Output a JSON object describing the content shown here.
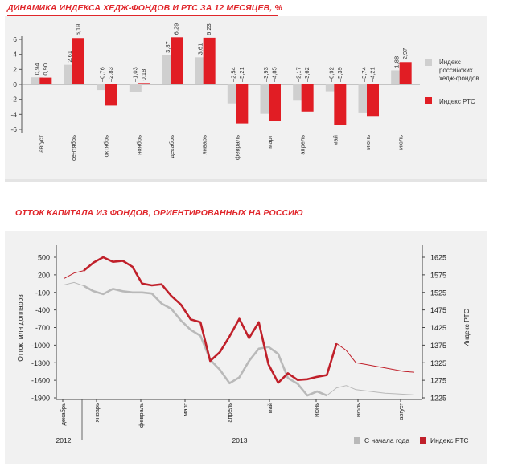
{
  "titles": {
    "chart1": "ДИНАМИКА ИНДЕКСА ХЕДЖ-ФОНДОВ И РТС ЗА 12 МЕСЯЦЕВ, %",
    "chart2": "ОТТОК КАПИТАЛА ИЗ ФОНДОВ, ОРИЕНТИРОВАННЫХ НА РОССИЮ"
  },
  "colors": {
    "accent": "#e0262b",
    "hedge_bar": "#cfcfcf",
    "rts_bar": "#e11d24",
    "gray_line": "#b9b9b9",
    "red_line": "#c0202a"
  },
  "chart_data": [
    {
      "type": "bar",
      "title": "ДИНАМИКА ИНДЕКСА ХЕДЖ-ФОНДОВ И РТС ЗА 12 МЕСЯЦЕВ, %",
      "categories": [
        "август",
        "сентябрь",
        "октябрь",
        "ноябрь",
        "декабрь",
        "январь",
        "февраль",
        "март",
        "апрель",
        "май",
        "июнь",
        "июль"
      ],
      "series": [
        {
          "name": "Индекс российских хедж-фондов",
          "values": [
            0.94,
            2.61,
            -0.76,
            -1.03,
            3.87,
            3.61,
            -2.54,
            -3.93,
            -2.17,
            -0.92,
            -3.74,
            1.88
          ]
        },
        {
          "name": "Индекс РТС",
          "values": [
            0.9,
            6.19,
            -2.83,
            0.18,
            6.29,
            6.23,
            -5.21,
            -4.85,
            -3.62,
            -5.39,
            -4.21,
            2.97
          ]
        }
      ],
      "value_labels": {
        "hedge": [
          "0,94",
          "2,61",
          "–0,76",
          "–1,03",
          "3,87",
          "3,61",
          "–2,54",
          "–3,93",
          "–2,17",
          "–0,92",
          "–3,74",
          "1,88"
        ],
        "rts": [
          "0,90",
          "6,19",
          "–2,83",
          "0,18",
          "6,29",
          "6,23",
          "–5,21",
          "–4,85",
          "–3,62",
          "–5,39",
          "–4,21",
          "2,97"
        ]
      },
      "y_ticks": [
        "6",
        "4",
        "2",
        "0",
        "-2",
        "-4",
        "-6"
      ],
      "ylim": [
        -6,
        7
      ],
      "legend": [
        "Индекс российских хедж-фондов",
        "Индекс РТС"
      ],
      "legend_position": "right"
    },
    {
      "type": "line",
      "title": "ОТТОК КАПИТАЛА ИЗ ФОНДОВ, ОРИЕНТИРОВАННЫХ НА РОССИЮ",
      "ylabel": "Отток, млн долларов",
      "y2label": "Индекс РТС",
      "ylim": [
        -1900,
        600
      ],
      "y2lim": [
        1225,
        1650
      ],
      "y_ticks": [
        "500",
        "200",
        "-100",
        "-400",
        "-700",
        "-1000",
        "-1300",
        "-1600",
        "-1900"
      ],
      "y2_ticks": [
        "1625",
        "1575",
        "1525",
        "1475",
        "1425",
        "1375",
        "1325",
        "1275",
        "1225"
      ],
      "x_ticks": [
        "декабрь",
        "январь",
        "февраль",
        "март",
        "апрель",
        "май",
        "июнь",
        "июль",
        "август"
      ],
      "x_groups": [
        "2012",
        "2013"
      ],
      "x_range_weeks": [
        0,
        36
      ],
      "series": [
        {
          "name": "С начала года",
          "axis": "left",
          "x": [
            0,
            1,
            2,
            3,
            4,
            5,
            6,
            7,
            8,
            9,
            10,
            11,
            12,
            13,
            14,
            15,
            16,
            17,
            18,
            19,
            20,
            21,
            22,
            23,
            24,
            25,
            26,
            27,
            28,
            29,
            30,
            31,
            32,
            33,
            34,
            35,
            36
          ],
          "values": [
            30,
            70,
            10,
            -80,
            -130,
            -40,
            -80,
            -100,
            -100,
            -120,
            -290,
            -380,
            -580,
            -740,
            -840,
            -1250,
            -1420,
            -1650,
            -1550,
            -1270,
            -1060,
            -1030,
            -1150,
            -1560,
            -1660,
            -1860,
            -1790,
            -1860,
            -1730,
            -1690,
            -1760,
            -1780,
            -1800,
            -1820,
            -1830,
            -1840,
            -1850
          ]
        },
        {
          "name": "Индекс РТС",
          "axis": "right",
          "x": [
            0,
            1,
            2,
            3,
            4,
            5,
            6,
            7,
            8,
            9,
            10,
            11,
            12,
            13,
            14,
            15,
            16,
            17,
            18,
            19,
            20,
            21,
            22,
            23,
            24,
            25,
            26,
            27,
            28,
            29,
            30,
            31,
            32,
            33,
            34,
            35,
            36
          ],
          "values": [
            1565,
            1580,
            1587,
            1610,
            1625,
            1612,
            1615,
            1598,
            1550,
            1545,
            1548,
            1515,
            1490,
            1448,
            1440,
            1330,
            1355,
            1400,
            1450,
            1395,
            1440,
            1320,
            1268,
            1295,
            1276,
            1278,
            1285,
            1290,
            1380,
            1360,
            1325,
            1320,
            1315,
            1310,
            1305,
            1300,
            1298
          ]
        }
      ],
      "legend": [
        "С начала года",
        "Индекс РТС"
      ],
      "legend_position": "bottom-right",
      "grid": false
    }
  ]
}
